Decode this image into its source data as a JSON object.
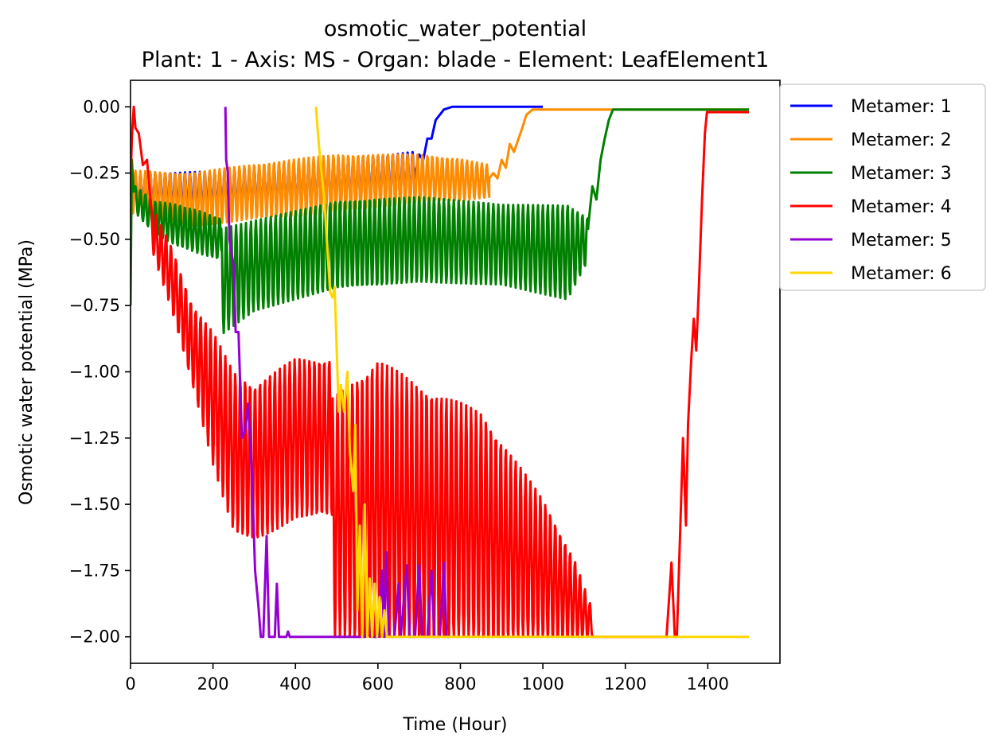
{
  "chart_data": {
    "type": "line",
    "title": "osmotic_water_potential",
    "subtitle": "Plant: 1 - Axis: MS - Organ: blade - Element: LeafElement1",
    "xlabel": "Time (Hour)",
    "ylabel": "Osmotic water potential (MPa)",
    "xlim": [
      0,
      1575
    ],
    "ylim": [
      -2.1,
      0.1
    ],
    "x_ticks": [
      0,
      200,
      400,
      600,
      800,
      1000,
      1200,
      1400
    ],
    "y_ticks": [
      0.0,
      -0.25,
      -0.5,
      -0.75,
      -1.0,
      -1.25,
      -1.5,
      -1.75,
      -2.0
    ],
    "x_tick_labels": [
      "0",
      "200",
      "400",
      "600",
      "800",
      "1000",
      "1200",
      "1400"
    ],
    "y_tick_labels": [
      "0.00",
      "−0.25",
      "−0.50",
      "−0.75",
      "−1.00",
      "−1.25",
      "−1.50",
      "−1.75",
      "−2.00"
    ],
    "grid": false,
    "legend_position": "outside-right-top",
    "series": [
      {
        "name": "Metamer: 1",
        "color": "#0000ff",
        "segments": [
          {
            "start": 0,
            "end": 690,
            "step": 12,
            "base": [
              [
                0,
                -0.32
              ],
              [
                200,
                -0.32
              ],
              [
                400,
                -0.3
              ],
              [
                600,
                -0.27
              ],
              [
                690,
                -0.26
              ]
            ],
            "amp": [
              [
                0,
                0.07
              ],
              [
                690,
                0.09
              ]
            ]
          },
          {
            "points": [
              [
                690,
                -0.25
              ],
              [
                700,
                -0.18
              ],
              [
                710,
                -0.2
              ],
              [
                720,
                -0.12
              ],
              [
                730,
                -0.12
              ],
              [
                740,
                -0.05
              ],
              [
                760,
                -0.01
              ],
              [
                780,
                0.0
              ],
              [
                1000,
                0.0
              ]
            ]
          }
        ]
      },
      {
        "name": "Metamer: 2",
        "color": "#ff8c00",
        "segments": [
          {
            "start": 0,
            "end": 870,
            "step": 12,
            "base": [
              [
                0,
                -0.32
              ],
              [
                150,
                -0.35
              ],
              [
                300,
                -0.32
              ],
              [
                500,
                -0.29
              ],
              [
                700,
                -0.27
              ],
              [
                870,
                -0.28
              ]
            ],
            "amp": [
              [
                0,
                0.08
              ],
              [
                150,
                0.1
              ],
              [
                500,
                0.11
              ],
              [
                800,
                0.08
              ],
              [
                870,
                0.06
              ]
            ]
          },
          {
            "points": [
              [
                870,
                -0.27
              ],
              [
                880,
                -0.25
              ],
              [
                890,
                -0.27
              ],
              [
                900,
                -0.2
              ],
              [
                910,
                -0.23
              ],
              [
                920,
                -0.14
              ],
              [
                930,
                -0.17
              ],
              [
                950,
                -0.08
              ],
              [
                960,
                -0.03
              ],
              [
                975,
                -0.01
              ],
              [
                1000,
                -0.01
              ],
              [
                1500,
                -0.01
              ]
            ]
          }
        ]
      },
      {
        "name": "Metamer: 3",
        "color": "#008000",
        "segments": [
          {
            "points": [
              [
                0,
                -0.75
              ],
              [
                3,
                -0.2
              ],
              [
                8,
                -0.32
              ],
              [
                12,
                -0.3
              ]
            ]
          },
          {
            "start": 12,
            "end": 220,
            "step": 12,
            "base": [
              [
                12,
                -0.35
              ],
              [
                60,
                -0.42
              ],
              [
                120,
                -0.45
              ],
              [
                220,
                -0.5
              ]
            ],
            "amp": [
              [
                12,
                0.05
              ],
              [
                120,
                0.08
              ],
              [
                220,
                0.08
              ]
            ]
          },
          {
            "start": 220,
            "end": 1110,
            "step": 12,
            "base": [
              [
                220,
                -0.66
              ],
              [
                300,
                -0.6
              ],
              [
                500,
                -0.52
              ],
              [
                700,
                -0.5
              ],
              [
                900,
                -0.52
              ],
              [
                1060,
                -0.55
              ],
              [
                1110,
                -0.5
              ]
            ],
            "amp": [
              [
                220,
                0.2
              ],
              [
                300,
                0.17
              ],
              [
                600,
                0.17
              ],
              [
                900,
                0.15
              ],
              [
                1060,
                0.18
              ],
              [
                1110,
                0.08
              ]
            ]
          },
          {
            "points": [
              [
                1110,
                -0.45
              ],
              [
                1120,
                -0.3
              ],
              [
                1130,
                -0.35
              ],
              [
                1140,
                -0.2
              ],
              [
                1150,
                -0.12
              ],
              [
                1160,
                -0.05
              ],
              [
                1170,
                -0.01
              ],
              [
                1500,
                -0.01
              ]
            ]
          }
        ]
      },
      {
        "name": "Metamer: 4",
        "color": "#ff0000",
        "segments": [
          {
            "points": [
              [
                0,
                -0.3
              ],
              [
                3,
                -0.12
              ],
              [
                8,
                0.0
              ],
              [
                12,
                -0.08
              ],
              [
                20,
                -0.1
              ],
              [
                30,
                -0.22
              ],
              [
                40,
                -0.2
              ],
              [
                50,
                -0.38
              ]
            ]
          },
          {
            "start": 50,
            "end": 490,
            "step": 12,
            "base": [
              [
                50,
                -0.45
              ],
              [
                100,
                -0.65
              ],
              [
                150,
                -0.9
              ],
              [
                200,
                -1.1
              ],
              [
                250,
                -1.3
              ],
              [
                300,
                -1.35
              ],
              [
                400,
                -1.25
              ],
              [
                490,
                -1.25
              ]
            ],
            "amp": [
              [
                50,
                0.08
              ],
              [
                100,
                0.12
              ],
              [
                150,
                0.15
              ],
              [
                200,
                0.25
              ],
              [
                250,
                0.3
              ],
              [
                300,
                0.3
              ],
              [
                400,
                0.3
              ],
              [
                490,
                0.3
              ]
            ]
          },
          {
            "start": 490,
            "end": 1120,
            "step": 12,
            "base": [
              [
                490,
                -1.55
              ],
              [
                600,
                -1.5
              ],
              [
                700,
                -1.55
              ],
              [
                850,
                -1.6
              ],
              [
                1000,
                -1.75
              ],
              [
                1080,
                -1.87
              ],
              [
                1120,
                -1.95
              ]
            ],
            "amp": [
              [
                490,
                0.45
              ],
              [
                600,
                0.55
              ],
              [
                700,
                0.5
              ],
              [
                850,
                0.45
              ],
              [
                1000,
                0.27
              ],
              [
                1080,
                0.15
              ],
              [
                1120,
                0.05
              ]
            ]
          },
          {
            "points": [
              [
                1120,
                -2.0
              ],
              [
                1300,
                -2.0
              ],
              [
                1312,
                -1.72
              ],
              [
                1320,
                -2.0
              ],
              [
                1325,
                -2.0
              ],
              [
                1335,
                -1.5
              ],
              [
                1340,
                -1.25
              ],
              [
                1347,
                -1.58
              ],
              [
                1352,
                -1.2
              ],
              [
                1360,
                -0.95
              ],
              [
                1366,
                -0.8
              ],
              [
                1372,
                -0.92
              ],
              [
                1378,
                -0.7
              ],
              [
                1386,
                -0.35
              ],
              [
                1393,
                -0.1
              ],
              [
                1398,
                -0.02
              ],
              [
                1500,
                -0.02
              ]
            ]
          }
        ]
      },
      {
        "name": "Metamer: 5",
        "color": "#9400d3",
        "segments": [
          {
            "points": [
              [
                230,
                0.0
              ],
              [
                232,
                -0.2
              ],
              [
                236,
                -0.25
              ],
              [
                240,
                -0.5
              ],
              [
                250,
                -0.6
              ],
              [
                255,
                -0.85
              ],
              [
                262,
                -0.85
              ],
              [
                270,
                -1.25
              ],
              [
                278,
                -1.22
              ],
              [
                285,
                -1.12
              ],
              [
                295,
                -1.4
              ],
              [
                302,
                -1.75
              ],
              [
                310,
                -1.88
              ],
              [
                316,
                -2.0
              ],
              [
                322,
                -2.0
              ],
              [
                330,
                -1.62
              ],
              [
                336,
                -2.0
              ],
              [
                350,
                -2.0
              ],
              [
                355,
                -1.8
              ],
              [
                360,
                -2.0
              ],
              [
                378,
                -2.0
              ],
              [
                382,
                -1.98
              ],
              [
                386,
                -2.0
              ],
              [
                570,
                -2.0
              ],
              [
                580,
                -1.8
              ],
              [
                585,
                -2.0
              ],
              [
                600,
                -2.0
              ],
              [
                610,
                -1.75
              ],
              [
                615,
                -2.0
              ],
              [
                620,
                -1.68
              ],
              [
                627,
                -2.0
              ],
              [
                640,
                -2.0
              ],
              [
                650,
                -1.8
              ],
              [
                655,
                -2.0
              ],
              [
                670,
                -1.73
              ],
              [
                677,
                -2.0
              ],
              [
                690,
                -2.0
              ],
              [
                700,
                -1.73
              ],
              [
                707,
                -2.0
              ],
              [
                720,
                -2.0
              ],
              [
                730,
                -1.75
              ],
              [
                737,
                -2.0
              ],
              [
                750,
                -2.0
              ],
              [
                760,
                -1.72
              ],
              [
                766,
                -2.0
              ],
              [
                775,
                -2.0
              ]
            ]
          }
        ]
      },
      {
        "name": "Metamer: 6",
        "color": "#ffd700",
        "segments": [
          {
            "points": [
              [
                450,
                0.0
              ],
              [
                452,
                -0.05
              ],
              [
                460,
                -0.2
              ],
              [
                470,
                -0.35
              ],
              [
                476,
                -0.5
              ],
              [
                484,
                -0.7
              ],
              [
                490,
                -0.72
              ],
              [
                495,
                -0.68
              ],
              [
                505,
                -1.15
              ],
              [
                510,
                -1.05
              ],
              [
                518,
                -1.15
              ],
              [
                526,
                -1.0
              ],
              [
                532,
                -1.3
              ],
              [
                540,
                -1.45
              ],
              [
                545,
                -1.2
              ],
              [
                550,
                -1.9
              ],
              [
                556,
                -1.58
              ],
              [
                562,
                -2.0
              ],
              [
                568,
                -1.5
              ],
              [
                574,
                -2.0
              ],
              [
                580,
                -1.78
              ],
              [
                586,
                -2.0
              ],
              [
                592,
                -1.8
              ],
              [
                598,
                -2.0
              ],
              [
                604,
                -1.85
              ],
              [
                610,
                -2.0
              ],
              [
                616,
                -1.9
              ],
              [
                622,
                -2.0
              ],
              [
                640,
                -2.0
              ],
              [
                1500,
                -2.0
              ]
            ]
          }
        ]
      }
    ]
  }
}
